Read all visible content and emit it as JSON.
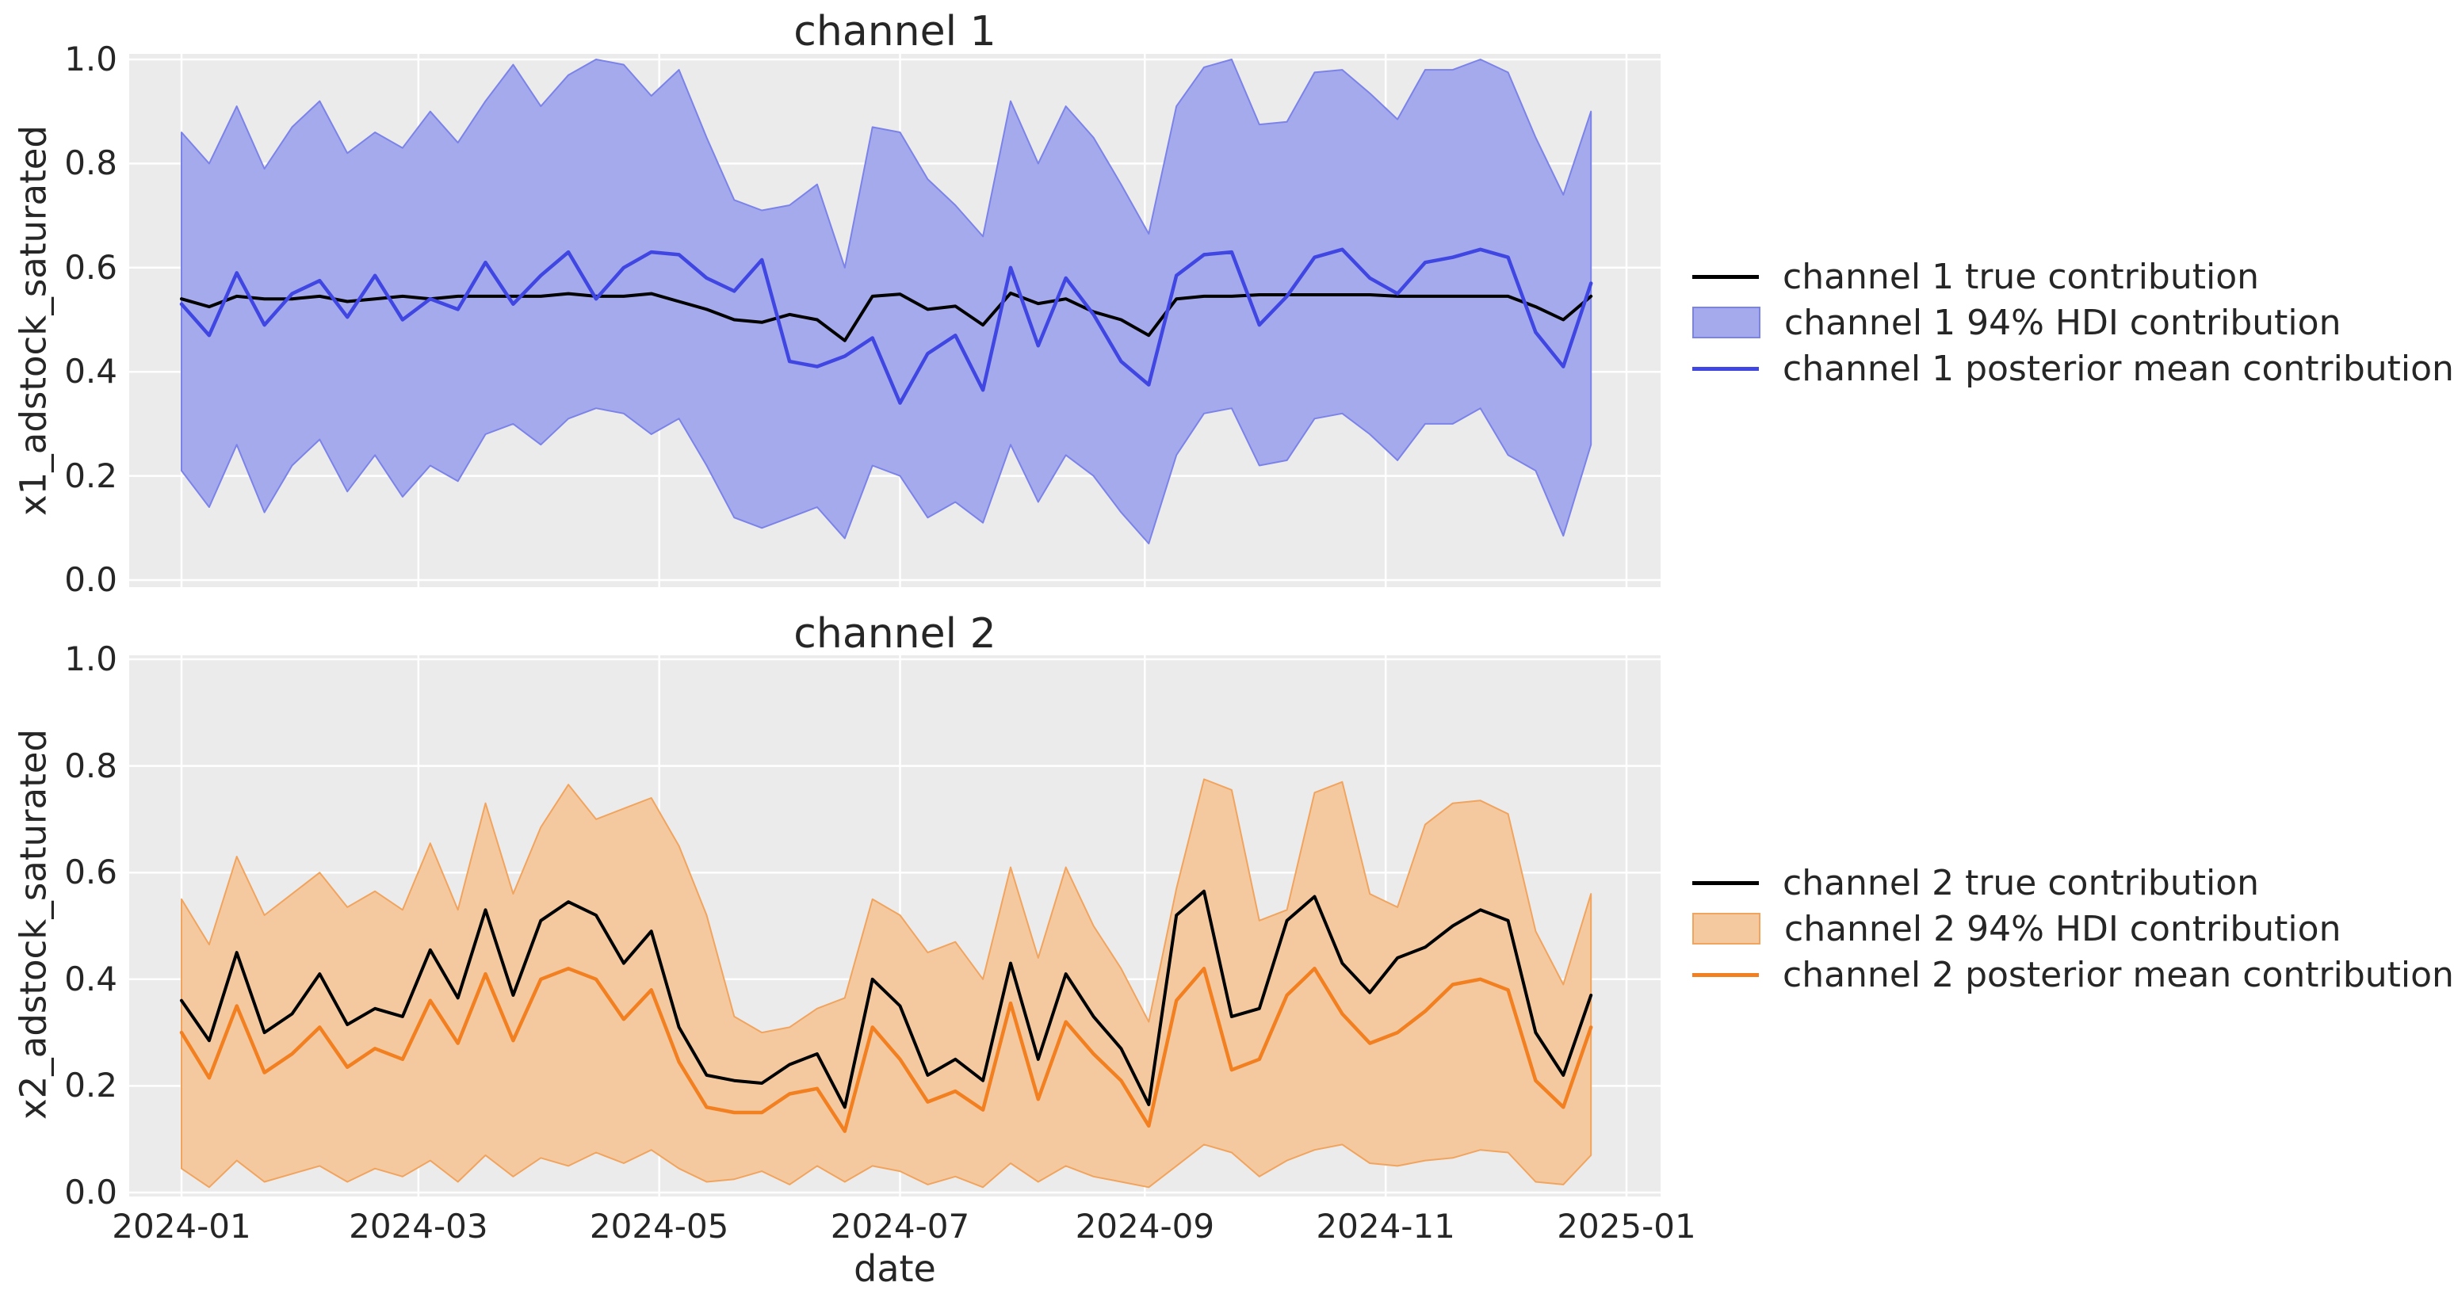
{
  "style": {
    "figure_bg": "#ffffff",
    "axes_bg": "#ebebeb",
    "grid_color": "#ffffff",
    "text_color": "#262626"
  },
  "xaxis": {
    "label": "date",
    "tick_labels": [
      "2024-01",
      "2024-03",
      "2024-05",
      "2024-07",
      "2024-09",
      "2024-11",
      "2025-01"
    ],
    "tick_day_offsets": [
      0,
      60,
      121,
      182,
      244,
      305,
      366
    ],
    "range_days": 366,
    "points_start_date": "2024-01-01",
    "points_step_days": 7,
    "n_points": 52
  },
  "chart_data": [
    {
      "type": "line",
      "title": "channel 1",
      "ylabel": "x1_adstock_saturated",
      "ylim": [
        0.0,
        1.0
      ],
      "y_ticks": [
        "0.0",
        "0.2",
        "0.4",
        "0.6",
        "0.8",
        "1.0"
      ],
      "grid": true,
      "legend_position": "right",
      "colors": {
        "true": "#000000",
        "mean": "#4046e2",
        "band_fill": "#a5aaec",
        "band_edge": "#7c83e8"
      },
      "series": [
        {
          "name": "channel 1 true contribution",
          "kind": "line",
          "values": [
            0.54,
            0.525,
            0.545,
            0.54,
            0.54,
            0.545,
            0.535,
            0.54,
            0.545,
            0.54,
            0.545,
            0.545,
            0.545,
            0.545,
            0.55,
            0.545,
            0.545,
            0.55,
            0.535,
            0.52,
            0.5,
            0.495,
            0.51,
            0.5,
            0.46,
            0.545,
            0.549,
            0.52,
            0.526,
            0.49,
            0.551,
            0.531,
            0.54,
            0.515,
            0.5,
            0.47,
            0.54,
            0.545,
            0.545,
            0.548,
            0.548,
            0.548,
            0.548,
            0.548,
            0.545,
            0.545,
            0.545,
            0.545,
            0.545,
            0.525,
            0.5,
            0.545
          ]
        },
        {
          "name": "channel 1 94% HDI contribution",
          "kind": "band",
          "upper": [
            0.86,
            0.8,
            0.91,
            0.79,
            0.87,
            0.92,
            0.82,
            0.86,
            0.83,
            0.9,
            0.84,
            0.92,
            0.99,
            0.91,
            0.97,
            1.0,
            0.99,
            0.93,
            0.98,
            0.85,
            0.73,
            0.71,
            0.72,
            0.76,
            0.6,
            0.87,
            0.86,
            0.77,
            0.72,
            0.66,
            0.92,
            0.8,
            0.91,
            0.85,
            0.76,
            0.665,
            0.91,
            0.985,
            1.0,
            0.875,
            0.88,
            0.975,
            0.98,
            0.935,
            0.885,
            0.98,
            0.98,
            1.0,
            0.975,
            0.85,
            0.74,
            0.9
          ],
          "lower": [
            0.21,
            0.14,
            0.26,
            0.13,
            0.22,
            0.27,
            0.17,
            0.24,
            0.16,
            0.22,
            0.19,
            0.28,
            0.3,
            0.26,
            0.31,
            0.33,
            0.32,
            0.28,
            0.31,
            0.22,
            0.12,
            0.1,
            0.12,
            0.14,
            0.08,
            0.22,
            0.2,
            0.12,
            0.15,
            0.11,
            0.26,
            0.15,
            0.24,
            0.2,
            0.13,
            0.07,
            0.24,
            0.32,
            0.33,
            0.22,
            0.23,
            0.31,
            0.32,
            0.28,
            0.23,
            0.3,
            0.3,
            0.33,
            0.24,
            0.21,
            0.085,
            0.26
          ]
        },
        {
          "name": "channel 1 posterior mean contribution",
          "kind": "line",
          "values": [
            0.53,
            0.47,
            0.59,
            0.49,
            0.55,
            0.575,
            0.505,
            0.585,
            0.5,
            0.54,
            0.52,
            0.61,
            0.53,
            0.585,
            0.63,
            0.54,
            0.6,
            0.63,
            0.625,
            0.58,
            0.555,
            0.615,
            0.42,
            0.41,
            0.43,
            0.465,
            0.34,
            0.435,
            0.47,
            0.365,
            0.6,
            0.45,
            0.58,
            0.51,
            0.42,
            0.375,
            0.585,
            0.625,
            0.63,
            0.49,
            0.545,
            0.62,
            0.635,
            0.58,
            0.55,
            0.61,
            0.62,
            0.635,
            0.62,
            0.476,
            0.41,
            0.57
          ]
        }
      ]
    },
    {
      "type": "line",
      "title": "channel 2",
      "ylabel": "x2_adstock_saturated",
      "ylim": [
        0.0,
        1.0
      ],
      "y_ticks": [
        "0.0",
        "0.2",
        "0.4",
        "0.6",
        "0.8",
        "1.0"
      ],
      "grid": true,
      "legend_position": "right",
      "colors": {
        "true": "#000000",
        "mean": "#f28020",
        "band_fill": "#f5c9a0",
        "band_edge": "#f0a45e"
      },
      "series": [
        {
          "name": "channel 2 true contribution",
          "kind": "line",
          "values": [
            0.36,
            0.285,
            0.45,
            0.3,
            0.335,
            0.41,
            0.315,
            0.345,
            0.33,
            0.455,
            0.365,
            0.53,
            0.37,
            0.51,
            0.545,
            0.52,
            0.43,
            0.49,
            0.31,
            0.22,
            0.21,
            0.205,
            0.24,
            0.26,
            0.16,
            0.4,
            0.35,
            0.22,
            0.25,
            0.21,
            0.43,
            0.25,
            0.41,
            0.33,
            0.27,
            0.165,
            0.52,
            0.565,
            0.33,
            0.345,
            0.51,
            0.555,
            0.43,
            0.375,
            0.44,
            0.46,
            0.5,
            0.53,
            0.51,
            0.3,
            0.22,
            0.37
          ]
        },
        {
          "name": "channel 2 94% HDI contribution",
          "kind": "band",
          "upper": [
            0.55,
            0.465,
            0.63,
            0.52,
            0.56,
            0.6,
            0.535,
            0.565,
            0.53,
            0.655,
            0.53,
            0.73,
            0.56,
            0.685,
            0.765,
            0.7,
            0.72,
            0.74,
            0.65,
            0.52,
            0.33,
            0.3,
            0.31,
            0.345,
            0.365,
            0.55,
            0.52,
            0.45,
            0.47,
            0.4,
            0.61,
            0.44,
            0.61,
            0.5,
            0.42,
            0.32,
            0.57,
            0.775,
            0.755,
            0.51,
            0.53,
            0.75,
            0.77,
            0.56,
            0.535,
            0.69,
            0.73,
            0.735,
            0.71,
            0.49,
            0.39,
            0.56
          ],
          "lower": [
            0.045,
            0.01,
            0.06,
            0.02,
            0.035,
            0.05,
            0.02,
            0.045,
            0.03,
            0.06,
            0.02,
            0.07,
            0.03,
            0.065,
            0.05,
            0.075,
            0.055,
            0.08,
            0.045,
            0.02,
            0.025,
            0.04,
            0.015,
            0.05,
            0.02,
            0.05,
            0.04,
            0.015,
            0.03,
            0.01,
            0.055,
            0.02,
            0.05,
            0.03,
            0.02,
            0.01,
            0.05,
            0.09,
            0.075,
            0.03,
            0.06,
            0.08,
            0.09,
            0.055,
            0.05,
            0.06,
            0.065,
            0.08,
            0.075,
            0.02,
            0.015,
            0.07
          ]
        },
        {
          "name": "channel 2 posterior mean contribution",
          "kind": "line",
          "values": [
            0.3,
            0.215,
            0.35,
            0.225,
            0.26,
            0.31,
            0.235,
            0.27,
            0.25,
            0.36,
            0.28,
            0.41,
            0.285,
            0.4,
            0.42,
            0.4,
            0.325,
            0.38,
            0.245,
            0.16,
            0.15,
            0.15,
            0.185,
            0.195,
            0.115,
            0.31,
            0.25,
            0.17,
            0.19,
            0.155,
            0.355,
            0.175,
            0.32,
            0.26,
            0.21,
            0.125,
            0.36,
            0.42,
            0.23,
            0.25,
            0.37,
            0.42,
            0.335,
            0.28,
            0.3,
            0.34,
            0.39,
            0.4,
            0.38,
            0.21,
            0.16,
            0.31
          ]
        }
      ]
    }
  ]
}
